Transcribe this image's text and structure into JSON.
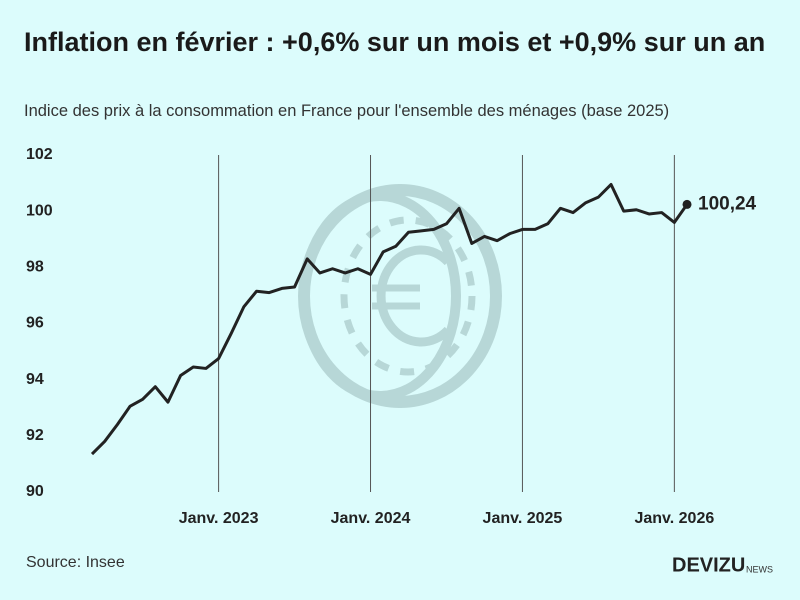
{
  "chart_data": {
    "type": "line",
    "title": "Inflation en février : +0,6% sur un mois et +0,9% sur un an",
    "subtitle": "Indice des prix à la consommation en France pour l'ensemble des ménages (base 2025)",
    "source": "Source: Insee",
    "brand": "DEVIZU",
    "brand_suffix": "NEWS",
    "categories": [
      null,
      null,
      null,
      null,
      null,
      null,
      null,
      null,
      null,
      null,
      "Janv. 2023",
      null,
      null,
      null,
      null,
      null,
      null,
      null,
      null,
      null,
      null,
      null,
      "Janv. 2024",
      null,
      null,
      null,
      null,
      null,
      null,
      null,
      null,
      null,
      null,
      null,
      "Janv. 2025",
      null,
      null,
      null,
      null,
      null,
      null,
      null,
      null,
      null,
      null,
      null,
      "Janv. 2026",
      null
    ],
    "series": [
      {
        "name": null,
        "color": "#222222",
        "values": [
          91.35,
          91.8,
          92.4,
          93.05,
          93.3,
          93.75,
          93.2,
          94.15,
          94.45,
          94.4,
          94.75,
          95.65,
          96.6,
          97.15,
          97.1,
          97.25,
          97.3,
          98.3,
          97.8,
          97.95,
          97.8,
          97.95,
          97.75,
          98.55,
          98.75,
          99.25,
          99.3,
          99.35,
          99.55,
          100.1,
          98.85,
          99.1,
          98.95,
          99.2,
          99.35,
          99.35,
          99.55,
          100.1,
          99.95,
          100.3,
          100.5,
          100.95,
          100.0,
          100.05,
          99.9,
          99.95,
          99.6,
          100.24
        ],
        "value_labels": [
          null,
          null,
          null,
          null,
          null,
          null,
          null,
          null,
          null,
          null,
          null,
          null,
          null,
          null,
          null,
          null,
          null,
          null,
          null,
          null,
          null,
          null,
          null,
          null,
          null,
          null,
          null,
          null,
          null,
          null,
          null,
          null,
          null,
          null,
          null,
          null,
          null,
          null,
          null,
          null,
          null,
          null,
          null,
          null,
          null,
          null,
          null,
          "100,24"
        ]
      }
    ],
    "ylim": [
      90,
      102
    ],
    "yticks": [
      90,
      92,
      94,
      96,
      98,
      100,
      102
    ],
    "grid": false
  }
}
